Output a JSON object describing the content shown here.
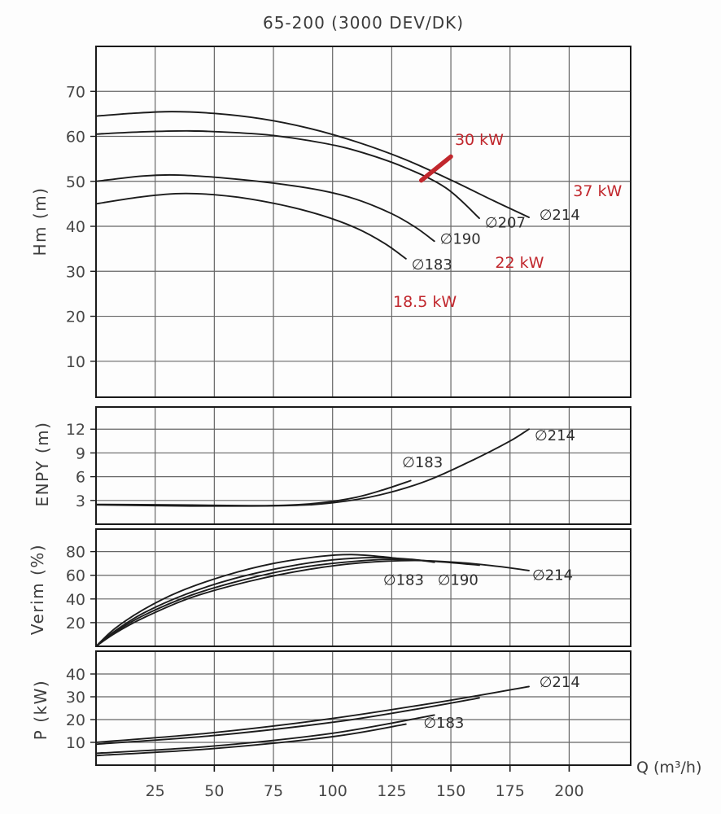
{
  "chart_data": {
    "type": "line",
    "title": "65-200 (3000 DEV/DK)",
    "xlabel": "Q (m³/h)",
    "xlim": [
      0,
      226
    ],
    "xticks": [
      25,
      50,
      75,
      100,
      125,
      150,
      175,
      200
    ],
    "grid": true,
    "legend_position": "inline-curve-labels",
    "colors": {
      "curve": "#1c1c1c",
      "grid": "#666666",
      "border": "#1a1a1a",
      "red": "#c1272d",
      "tick_text": "#474747",
      "label_text": "#2e2e2e"
    },
    "panels": [
      {
        "key": "hm",
        "ylabel": "Hm (m)",
        "ylim": [
          2,
          80
        ],
        "yticks": [
          10,
          20,
          30,
          40,
          50,
          60,
          70
        ],
        "series": [
          {
            "name": "∅214",
            "points": [
              [
                0,
                64.5
              ],
              [
                15,
                65.1
              ],
              [
                32,
                65.5
              ],
              [
                50,
                65.1
              ],
              [
                70,
                63.9
              ],
              [
                90,
                61.8
              ],
              [
                110,
                58.8
              ],
              [
                130,
                55.0
              ],
              [
                150,
                50.3
              ],
              [
                168,
                45.7
              ],
              [
                183,
                42.0
              ]
            ],
            "label": {
              "text": "∅214",
              "x": 196,
              "y": 42.5
            }
          },
          {
            "name": "∅207",
            "points": [
              [
                0,
                60.5
              ],
              [
                20,
                61.0
              ],
              [
                40,
                61.2
              ],
              [
                60,
                60.8
              ],
              [
                75,
                60.2
              ],
              [
                95,
                58.6
              ],
              [
                110,
                56.8
              ],
              [
                130,
                53.2
              ],
              [
                148,
                48.5
              ],
              [
                162,
                41.8
              ]
            ],
            "label": {
              "text": "∅207",
              "x": 173,
              "y": 40.8
            }
          },
          {
            "name": "∅190",
            "points": [
              [
                0,
                50.0
              ],
              [
                20,
                51.2
              ],
              [
                35,
                51.4
              ],
              [
                55,
                50.7
              ],
              [
                75,
                49.6
              ],
              [
                95,
                48.0
              ],
              [
                110,
                46.0
              ],
              [
                125,
                42.8
              ],
              [
                135,
                39.8
              ],
              [
                143,
                36.7
              ]
            ],
            "label": {
              "text": "∅190",
              "x": 154,
              "y": 37.2
            }
          },
          {
            "name": "∅183",
            "points": [
              [
                0,
                45.0
              ],
              [
                20,
                46.6
              ],
              [
                38,
                47.3
              ],
              [
                58,
                46.6
              ],
              [
                78,
                44.8
              ],
              [
                95,
                42.5
              ],
              [
                110,
                39.6
              ],
              [
                122,
                36.2
              ],
              [
                131,
                32.8
              ]
            ],
            "label": {
              "text": "∅183",
              "x": 142,
              "y": 31.5
            }
          }
        ],
        "power_labels": [
          {
            "text": "30 kW",
            "x": 162,
            "y": 59.4
          },
          {
            "text": "37 kW",
            "x": 212,
            "y": 48.0
          },
          {
            "text": "22 kW",
            "x": 179,
            "y": 32.0
          },
          {
            "text": "18.5 kW",
            "x": 139,
            "y": 23.4
          }
        ],
        "duty_marker": {
          "x1": 137.5,
          "y1": 50.2,
          "x2": 150,
          "y2": 55.5
        }
      },
      {
        "key": "enpy",
        "ylabel": "ENPY (m)",
        "ylim": [
          0,
          14.8
        ],
        "yticks": [
          3,
          6,
          9,
          12
        ],
        "series": [
          {
            "name": "∅183",
            "points": [
              [
                0,
                2.5
              ],
              [
                30,
                2.45
              ],
              [
                60,
                2.35
              ],
              [
                80,
                2.4
              ],
              [
                95,
                2.7
              ],
              [
                110,
                3.4
              ],
              [
                122,
                4.4
              ],
              [
                133,
                5.5
              ]
            ],
            "label": {
              "text": "∅183",
              "x": 138,
              "y": 7.8
            }
          },
          {
            "name": "∅214",
            "points": [
              [
                0,
                2.45
              ],
              [
                40,
                2.3
              ],
              [
                80,
                2.35
              ],
              [
                100,
                2.7
              ],
              [
                120,
                3.7
              ],
              [
                140,
                5.5
              ],
              [
                160,
                8.2
              ],
              [
                175,
                10.5
              ],
              [
                183,
                12.0
              ]
            ],
            "label": {
              "text": "∅214",
              "x": 194,
              "y": 11.2
            }
          }
        ],
        "power_labels": [],
        "duty_marker": null
      },
      {
        "key": "verim",
        "ylabel": "Verim (%)",
        "ylim": [
          0,
          99
        ],
        "yticks": [
          20,
          40,
          60,
          80
        ],
        "series": [
          {
            "name": "∅183",
            "points": [
              [
                0,
                0
              ],
              [
                8,
                15
              ],
              [
                20,
                31
              ],
              [
                35,
                46
              ],
              [
                55,
                60
              ],
              [
                75,
                70
              ],
              [
                95,
                76
              ],
              [
                108,
                77.5
              ],
              [
                122,
                75.5
              ],
              [
                133,
                72.5
              ]
            ],
            "label": {
              "text": "∅183",
              "x": 130,
              "y": 56
            }
          },
          {
            "name": "∅190",
            "points": [
              [
                0,
                0
              ],
              [
                8,
                13
              ],
              [
                20,
                28
              ],
              [
                38,
                44
              ],
              [
                58,
                57
              ],
              [
                80,
                67
              ],
              [
                100,
                73
              ],
              [
                118,
                75
              ],
              [
                133,
                73.5
              ],
              [
                143,
                71
              ]
            ],
            "label": {
              "text": "∅190",
              "x": 153,
              "y": 56
            }
          },
          {
            "name": "∅207",
            "points": [
              [
                0,
                0
              ],
              [
                8,
                12
              ],
              [
                20,
                26
              ],
              [
                40,
                43
              ],
              [
                62,
                56
              ],
              [
                85,
                66
              ],
              [
                105,
                71
              ],
              [
                125,
                73.5
              ],
              [
                145,
                71.5
              ],
              [
                162,
                68.5
              ]
            ],
            "label": null
          },
          {
            "name": "∅214",
            "points": [
              [
                0,
                0
              ],
              [
                8,
                11
              ],
              [
                20,
                24
              ],
              [
                40,
                41
              ],
              [
                65,
                55
              ],
              [
                90,
                65
              ],
              [
                112,
                70.5
              ],
              [
                135,
                72.5
              ],
              [
                155,
                70.5
              ],
              [
                170,
                67.5
              ],
              [
                183,
                64
              ]
            ],
            "label": {
              "text": "∅214",
              "x": 193,
              "y": 60
            }
          }
        ],
        "power_labels": [],
        "duty_marker": null
      },
      {
        "key": "p",
        "ylabel": "P (kW)",
        "ylim": [
          0,
          50
        ],
        "yticks": [
          10,
          20,
          30,
          40
        ],
        "series": [
          {
            "name": "∅214",
            "points": [
              [
                0,
                10.0
              ],
              [
                50,
                14.3
              ],
              [
                100,
                20.5
              ],
              [
                150,
                28.5
              ],
              [
                183,
                34.5
              ]
            ],
            "label": {
              "text": "∅214",
              "x": 196,
              "y": 36.5
            }
          },
          {
            "name": "∅207",
            "points": [
              [
                0,
                9.2
              ],
              [
                50,
                13.0
              ],
              [
                100,
                18.8
              ],
              [
                135,
                24.5
              ],
              [
                162,
                29.5
              ]
            ],
            "label": null
          },
          {
            "name": "∅190",
            "points": [
              [
                0,
                5.2
              ],
              [
                50,
                8.4
              ],
              [
                100,
                14.0
              ],
              [
                143,
                22.0
              ]
            ],
            "label": null
          },
          {
            "name": "∅183",
            "points": [
              [
                0,
                4.2
              ],
              [
                50,
                7.3
              ],
              [
                100,
                12.5
              ],
              [
                131,
                18.0
              ]
            ],
            "label": {
              "text": "∅183",
              "x": 147,
              "y": 18.5
            }
          }
        ],
        "power_labels": [],
        "duty_marker": null
      }
    ]
  }
}
